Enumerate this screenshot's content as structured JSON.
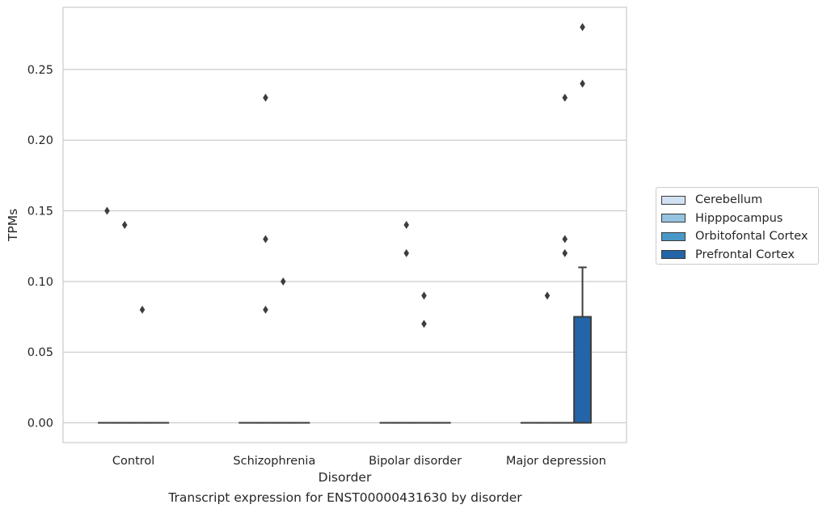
{
  "chart_data": {
    "type": "box",
    "xlabel": "Disorder",
    "ylabel": "TPMs",
    "caption": "Transcript expression for ENST00000431630 by disorder",
    "categories": [
      "Control",
      "Schizophrenia",
      "Bipolar disorder",
      "Major depression"
    ],
    "ylim": [
      -0.014,
      0.294
    ],
    "yticks": [
      0.0,
      0.05,
      0.1,
      0.15,
      0.2,
      0.25
    ],
    "ytick_labels": [
      "0.00",
      "0.05",
      "0.10",
      "0.15",
      "0.20",
      "0.25"
    ],
    "grid": true,
    "legend_placement": "right",
    "series": [
      {
        "name": "Cerebellum",
        "color": "#d0e1f2",
        "boxes": [
          {
            "q1": 0,
            "median": 0,
            "q3": 0,
            "whisker_low": 0,
            "whisker_high": 0,
            "outliers": [
              0.15
            ]
          },
          {
            "q1": 0,
            "median": 0,
            "q3": 0,
            "whisker_low": 0,
            "whisker_high": 0,
            "outliers": []
          },
          {
            "q1": 0,
            "median": 0,
            "q3": 0,
            "whisker_low": 0,
            "whisker_high": 0,
            "outliers": []
          },
          {
            "q1": 0,
            "median": 0,
            "q3": 0,
            "whisker_low": 0,
            "whisker_high": 0,
            "outliers": []
          }
        ]
      },
      {
        "name": "Hipppocampus",
        "color": "#94c4df",
        "boxes": [
          {
            "q1": 0,
            "median": 0,
            "q3": 0,
            "whisker_low": 0,
            "whisker_high": 0,
            "outliers": [
              0.14
            ]
          },
          {
            "q1": 0,
            "median": 0,
            "q3": 0,
            "whisker_low": 0,
            "whisker_high": 0,
            "outliers": [
              0.23,
              0.13,
              0.08
            ]
          },
          {
            "q1": 0,
            "median": 0,
            "q3": 0,
            "whisker_low": 0,
            "whisker_high": 0,
            "outliers": [
              0.14,
              0.12
            ]
          },
          {
            "q1": 0,
            "median": 0,
            "q3": 0,
            "whisker_low": 0,
            "whisker_high": 0,
            "outliers": [
              0.09
            ]
          }
        ]
      },
      {
        "name": "Orbitofontal Cortex",
        "color": "#4a98c9",
        "boxes": [
          {
            "q1": 0,
            "median": 0,
            "q3": 0,
            "whisker_low": 0,
            "whisker_high": 0,
            "outliers": [
              0.08
            ]
          },
          {
            "q1": 0,
            "median": 0,
            "q3": 0,
            "whisker_low": 0,
            "whisker_high": 0,
            "outliers": [
              0.1
            ]
          },
          {
            "q1": 0,
            "median": 0,
            "q3": 0,
            "whisker_low": 0,
            "whisker_high": 0,
            "outliers": [
              0.09,
              0.07
            ]
          },
          {
            "q1": 0,
            "median": 0,
            "q3": 0,
            "whisker_low": 0,
            "whisker_high": 0,
            "outliers": [
              0.23,
              0.13,
              0.12
            ]
          }
        ]
      },
      {
        "name": "Prefrontal Cortex",
        "color": "#2365a8",
        "boxes": [
          {
            "q1": 0,
            "median": 0,
            "q3": 0,
            "whisker_low": 0,
            "whisker_high": 0,
            "outliers": []
          },
          {
            "q1": 0,
            "median": 0,
            "q3": 0,
            "whisker_low": 0,
            "whisker_high": 0,
            "outliers": []
          },
          {
            "q1": 0,
            "median": 0,
            "q3": 0,
            "whisker_low": 0,
            "whisker_high": 0,
            "outliers": []
          },
          {
            "q1": 0,
            "median": 0,
            "q3": 0.075,
            "whisker_low": 0,
            "whisker_high": 0.11,
            "outliers": [
              0.28,
              0.24
            ]
          }
        ]
      }
    ]
  }
}
